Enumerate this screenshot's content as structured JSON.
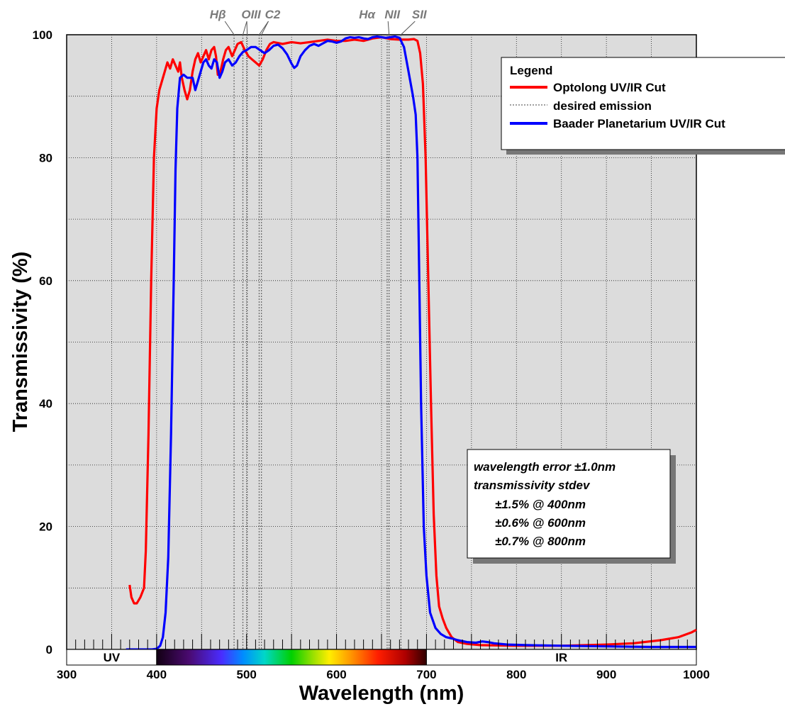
{
  "chart_data": {
    "type": "line",
    "title": "",
    "xlabel": "Wavelength (nm)",
    "ylabel": "Transmissivity (%)",
    "xlim": [
      300,
      1000
    ],
    "ylim": [
      0,
      100
    ],
    "x_ticks": [
      "300",
      "400",
      "500",
      "600",
      "700",
      "800",
      "900",
      "1000"
    ],
    "y_ticks": [
      "0",
      "20",
      "40",
      "60",
      "80",
      "100"
    ],
    "grid": true,
    "legend": {
      "title": "Legend",
      "placement": "top-right",
      "entries": [
        {
          "label": "Optolong UV/IR Cut",
          "color": "#ff0000",
          "style": "solid"
        },
        {
          "label": "desired emission",
          "color": "#808080",
          "style": "dotted"
        },
        {
          "label": "Baader Planetarium UV/IR Cut",
          "color": "#0000ff",
          "style": "solid"
        }
      ]
    },
    "emission_lines": [
      {
        "label": "Hβ",
        "x": 486.1
      },
      {
        "label": "OIII",
        "x": 495.9
      },
      {
        "label": "OIII",
        "x": 500.7
      },
      {
        "label": "C2",
        "x": 514
      },
      {
        "label": "C2",
        "x": 516.5
      },
      {
        "label": "Hα",
        "x": 656.3
      },
      {
        "label": "NII",
        "x": 658.4
      },
      {
        "label": "SII",
        "x": 671.6
      }
    ],
    "emission_label_positions": [
      {
        "label": "Hβ",
        "x": 468
      },
      {
        "label": "OIII",
        "x": 505
      },
      {
        "label": "C2",
        "x": 529
      },
      {
        "label": "Hα",
        "x": 634
      },
      {
        "label": "NII",
        "x": 662
      },
      {
        "label": "SII",
        "x": 692
      }
    ],
    "series": [
      {
        "name": "Optolong UV/IR Cut",
        "color": "#ff0000",
        "points": [
          [
            370,
            10.5
          ],
          [
            372,
            8.5
          ],
          [
            375,
            7.5
          ],
          [
            378,
            7.5
          ],
          [
            382,
            8.5
          ],
          [
            386,
            10
          ],
          [
            388,
            16
          ],
          [
            391,
            35
          ],
          [
            394,
            60
          ],
          [
            397,
            80
          ],
          [
            400,
            88
          ],
          [
            403,
            91
          ],
          [
            406,
            92.5
          ],
          [
            409,
            94
          ],
          [
            412,
            95.5
          ],
          [
            415,
            94.5
          ],
          [
            418,
            96
          ],
          [
            421,
            95
          ],
          [
            424,
            94
          ],
          [
            426,
            95.5
          ],
          [
            428,
            93
          ],
          [
            431,
            91
          ],
          [
            434,
            89.5
          ],
          [
            437,
            91
          ],
          [
            440,
            94
          ],
          [
            443,
            96
          ],
          [
            446,
            97
          ],
          [
            449,
            95.5
          ],
          [
            452,
            96.5
          ],
          [
            455,
            97.5
          ],
          [
            458,
            96
          ],
          [
            461,
            97.5
          ],
          [
            464,
            98
          ],
          [
            466,
            96.5
          ],
          [
            468,
            93.5
          ],
          [
            471,
            94
          ],
          [
            474,
            96
          ],
          [
            477,
            97.5
          ],
          [
            480,
            98
          ],
          [
            484,
            96.5
          ],
          [
            487,
            97.5
          ],
          [
            490,
            98.5
          ],
          [
            494,
            98.8
          ],
          [
            498,
            97.5
          ],
          [
            502,
            96.5
          ],
          [
            506,
            96
          ],
          [
            510,
            95.5
          ],
          [
            514,
            95
          ],
          [
            518,
            96
          ],
          [
            522,
            97.5
          ],
          [
            526,
            98.5
          ],
          [
            530,
            98.8
          ],
          [
            540,
            98.5
          ],
          [
            550,
            98.8
          ],
          [
            560,
            98.6
          ],
          [
            570,
            98.8
          ],
          [
            580,
            99
          ],
          [
            590,
            99.2
          ],
          [
            600,
            99
          ],
          [
            610,
            99
          ],
          [
            620,
            99.2
          ],
          [
            630,
            99
          ],
          [
            640,
            99.4
          ],
          [
            650,
            99.6
          ],
          [
            660,
            99.3
          ],
          [
            670,
            99.2
          ],
          [
            680,
            99.2
          ],
          [
            686,
            99.3
          ],
          [
            690,
            99
          ],
          [
            693,
            97
          ],
          [
            696,
            92
          ],
          [
            699,
            80
          ],
          [
            702,
            60
          ],
          [
            705,
            40
          ],
          [
            708,
            22
          ],
          [
            711,
            12
          ],
          [
            714,
            7
          ],
          [
            718,
            5
          ],
          [
            722,
            3.5
          ],
          [
            728,
            2
          ],
          [
            735,
            1.2
          ],
          [
            745,
            0.9
          ],
          [
            760,
            0.7
          ],
          [
            800,
            0.6
          ],
          [
            850,
            0.6
          ],
          [
            900,
            0.8
          ],
          [
            930,
            1
          ],
          [
            960,
            1.5
          ],
          [
            980,
            2
          ],
          [
            995,
            2.8
          ],
          [
            1000,
            3.2
          ]
        ]
      },
      {
        "name": "Baader Planetarium UV/IR Cut",
        "color": "#0000ff",
        "points": [
          [
            366,
            0
          ],
          [
            395,
            0
          ],
          [
            400,
            0.1
          ],
          [
            404,
            0.6
          ],
          [
            407,
            2
          ],
          [
            410,
            6
          ],
          [
            413,
            15
          ],
          [
            416,
            35
          ],
          [
            419,
            60
          ],
          [
            421,
            78
          ],
          [
            423,
            88
          ],
          [
            426,
            93
          ],
          [
            430,
            93.5
          ],
          [
            434,
            93
          ],
          [
            437,
            93
          ],
          [
            440,
            93
          ],
          [
            443,
            91
          ],
          [
            446,
            92.5
          ],
          [
            449,
            94
          ],
          [
            452,
            95.5
          ],
          [
            455,
            96
          ],
          [
            458,
            95
          ],
          [
            461,
            94.5
          ],
          [
            464,
            96
          ],
          [
            467,
            95.5
          ],
          [
            470,
            93
          ],
          [
            473,
            94
          ],
          [
            476,
            95.5
          ],
          [
            480,
            96
          ],
          [
            484,
            95
          ],
          [
            488,
            95.5
          ],
          [
            492,
            96.5
          ],
          [
            496,
            97.2
          ],
          [
            500,
            97.5
          ],
          [
            505,
            98
          ],
          [
            510,
            98
          ],
          [
            515,
            97.5
          ],
          [
            520,
            97
          ],
          [
            525,
            97.5
          ],
          [
            530,
            98.2
          ],
          [
            535,
            98.4
          ],
          [
            540,
            97.8
          ],
          [
            545,
            96.8
          ],
          [
            550,
            95.3
          ],
          [
            553,
            94.6
          ],
          [
            556,
            95
          ],
          [
            560,
            96.5
          ],
          [
            565,
            97.5
          ],
          [
            570,
            98.2
          ],
          [
            575,
            98.5
          ],
          [
            580,
            98.2
          ],
          [
            585,
            98.6
          ],
          [
            590,
            99
          ],
          [
            595,
            98.9
          ],
          [
            600,
            98.7
          ],
          [
            605,
            98.9
          ],
          [
            610,
            99.4
          ],
          [
            615,
            99.6
          ],
          [
            620,
            99.5
          ],
          [
            625,
            99.6
          ],
          [
            630,
            99.4
          ],
          [
            635,
            99.3
          ],
          [
            640,
            99.6
          ],
          [
            645,
            99.7
          ],
          [
            650,
            99.6
          ],
          [
            655,
            99.5
          ],
          [
            660,
            99.6
          ],
          [
            665,
            99.7
          ],
          [
            670,
            99.5
          ],
          [
            675,
            98
          ],
          [
            680,
            94
          ],
          [
            685,
            90
          ],
          [
            688,
            87
          ],
          [
            690,
            80
          ],
          [
            692,
            60
          ],
          [
            694,
            40
          ],
          [
            697,
            20
          ],
          [
            700,
            12
          ],
          [
            704,
            6
          ],
          [
            710,
            3.5
          ],
          [
            716,
            2.5
          ],
          [
            722,
            2
          ],
          [
            728,
            1.8
          ],
          [
            735,
            1.5
          ],
          [
            745,
            1.2
          ],
          [
            755,
            1.1
          ],
          [
            762,
            1.3
          ],
          [
            768,
            1.2
          ],
          [
            775,
            1
          ],
          [
            790,
            0.8
          ],
          [
            810,
            0.7
          ],
          [
            850,
            0.6
          ],
          [
            900,
            0.5
          ],
          [
            950,
            0.4
          ],
          [
            1000,
            0.4
          ]
        ]
      }
    ],
    "bands": [
      {
        "label": "UV",
        "x0": 300,
        "x1": 400,
        "type": "text"
      },
      {
        "label": "",
        "x0": 400,
        "x1": 700,
        "type": "spectrum"
      },
      {
        "label": "IR",
        "x0": 700,
        "x1": 1000,
        "type": "text"
      }
    ],
    "annotation": {
      "placement": "lower-right",
      "lines": [
        "wavelength error ±1.0nm",
        "transmissivity stdev",
        "±1.5% @ 400nm",
        "±0.6% @ 600nm",
        "±0.7% @ 800nm"
      ]
    }
  }
}
